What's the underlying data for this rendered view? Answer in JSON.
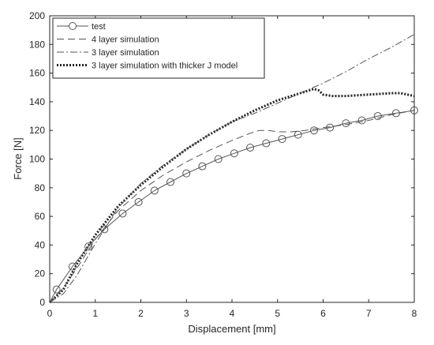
{
  "chart_data": {
    "type": "line",
    "title": "",
    "xlabel": "Displacement [mm]",
    "ylabel": "Force [N]",
    "xlim": [
      0,
      8
    ],
    "ylim": [
      0,
      200
    ],
    "xticks": [
      0,
      1,
      2,
      3,
      4,
      5,
      6,
      7,
      8
    ],
    "yticks": [
      0,
      20,
      40,
      60,
      80,
      100,
      120,
      140,
      160,
      180,
      200
    ],
    "grid": false,
    "legend_position": "top-left",
    "series": [
      {
        "name": "test",
        "style": "solid-circle-markers",
        "color": "#555555",
        "x": [
          0,
          0.15,
          0.5,
          0.85,
          1.2,
          1.6,
          1.95,
          2.3,
          2.65,
          3.0,
          3.35,
          3.7,
          4.05,
          4.4,
          4.75,
          5.1,
          5.45,
          5.8,
          6.15,
          6.5,
          6.85,
          7.2,
          7.6,
          8.0
        ],
        "y": [
          0,
          9,
          25,
          39,
          51,
          62,
          70,
          78,
          84,
          90,
          95,
          100,
          104,
          108,
          111,
          114,
          117,
          120,
          122,
          125,
          127,
          130,
          132,
          134
        ]
      },
      {
        "name": "4 layer simulation",
        "style": "dashed",
        "color": "#555555",
        "x": [
          0,
          0.3,
          0.6,
          1.0,
          1.5,
          2.0,
          2.5,
          3.0,
          3.5,
          4.0,
          4.4,
          4.6,
          4.8,
          5.0,
          5.3,
          5.6,
          6.0,
          6.5,
          7.0,
          7.5,
          8.0
        ],
        "y": [
          0,
          10,
          24,
          44,
          64,
          78,
          89,
          98,
          106,
          113,
          118,
          120,
          120,
          119,
          119,
          120,
          122,
          124,
          127,
          131,
          134
        ]
      },
      {
        "name": "3 layer simulation",
        "style": "dash-dot",
        "color": "#555555",
        "x": [
          0,
          0.3,
          0.6,
          1.0,
          1.5,
          2.0,
          2.5,
          3.0,
          3.5,
          4.0,
          4.5,
          5.0,
          5.5,
          6.0,
          6.5,
          7.0,
          7.5,
          8.0
        ],
        "y": [
          0,
          6,
          19,
          41,
          66,
          83,
          96,
          107,
          117,
          126,
          132,
          139,
          146,
          153,
          161,
          170,
          178,
          187
        ]
      },
      {
        "name": "3 layer simulation with thicker J model",
        "style": "dotted-heavy",
        "color": "#222222",
        "x": [
          0,
          0.3,
          0.6,
          1.0,
          1.5,
          2.0,
          2.5,
          3.0,
          3.5,
          4.0,
          4.5,
          5.0,
          5.5,
          5.8,
          5.9,
          6.0,
          6.2,
          6.5,
          7.0,
          7.5,
          7.7,
          8.0
        ],
        "y": [
          0,
          9,
          27,
          47,
          67,
          82,
          95,
          107,
          117,
          126,
          134,
          141,
          146,
          149,
          148,
          145,
          144,
          144,
          145,
          146,
          146,
          144
        ]
      }
    ]
  }
}
